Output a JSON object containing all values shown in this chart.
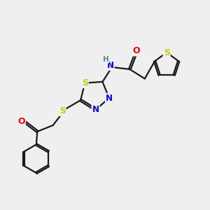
{
  "background_color": "#efefef",
  "bond_color": "#1a1a1a",
  "atom_colors": {
    "S": "#cccc00",
    "N": "#0000ee",
    "O": "#ee0000",
    "H": "#4a9090",
    "C": "#1a1a1a"
  },
  "figsize": [
    3.0,
    3.0
  ],
  "dpi": 100,
  "lw": 1.6,
  "sep": 0.09
}
